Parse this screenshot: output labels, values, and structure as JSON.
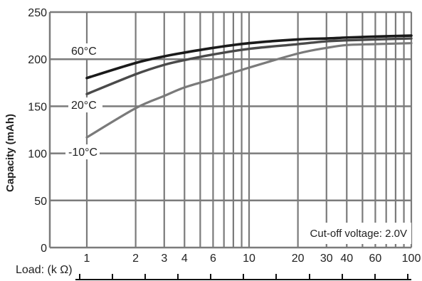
{
  "chart_data": {
    "type": "line",
    "title": "",
    "xlabel": "Load: (k Ω)",
    "ylabel": "Capacity (mAh)",
    "x_scale": "log",
    "xlim": [
      1,
      100
    ],
    "ylim": [
      0,
      250
    ],
    "x_ticks": [
      1,
      2,
      3,
      4,
      6,
      10,
      20,
      30,
      40,
      60,
      100
    ],
    "y_ticks": [
      0,
      50,
      100,
      150,
      200,
      250
    ],
    "annotation": "Cut-off voltage: 2.0V",
    "grid": true,
    "series": [
      {
        "name": "60°C",
        "color": "#1a1a1a",
        "x": [
          1,
          2,
          3,
          4,
          6,
          10,
          20,
          30,
          40,
          60,
          100
        ],
        "y": [
          180,
          196,
          203,
          207,
          212,
          217,
          221,
          222,
          223,
          224,
          225
        ]
      },
      {
        "name": "20°C",
        "color": "#4a4a4a",
        "x": [
          1,
          2,
          3,
          4,
          6,
          10,
          20,
          30,
          40,
          60,
          100
        ],
        "y": [
          163,
          184,
          194,
          199,
          205,
          211,
          216,
          219,
          220,
          221,
          222
        ]
      },
      {
        "name": "-10°C",
        "color": "#7a7a7a",
        "x": [
          1,
          2,
          3,
          4,
          6,
          10,
          20,
          30,
          40,
          60,
          100
        ],
        "y": [
          117,
          148,
          161,
          170,
          179,
          191,
          206,
          212,
          215,
          216,
          217
        ]
      }
    ]
  }
}
